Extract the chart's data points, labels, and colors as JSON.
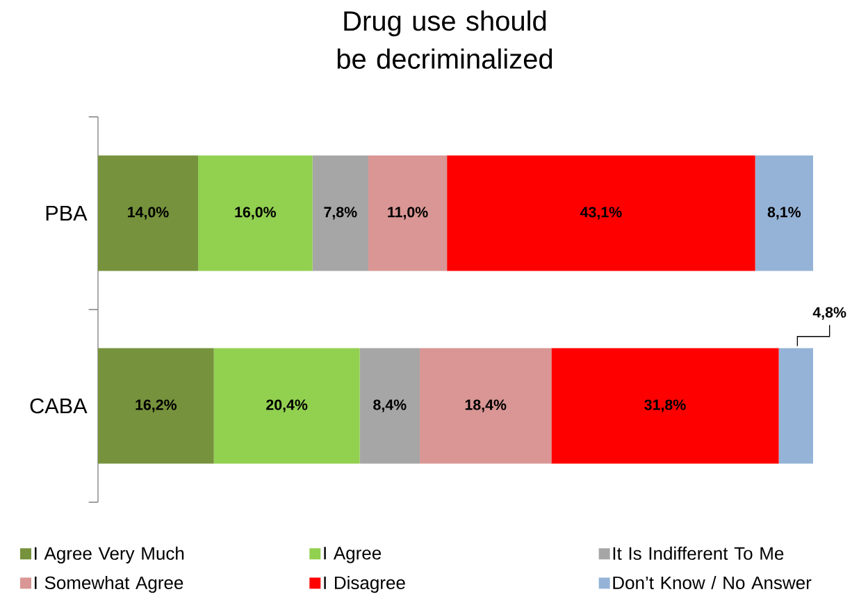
{
  "chart_data": {
    "type": "bar",
    "title": "Drug use should be decriminalized",
    "orientation": "horizontal",
    "stacked": true,
    "categories": [
      "PBA",
      "CABA"
    ],
    "tick_labels": "y",
    "legend": "bottom",
    "series": [
      {
        "name": "I Agree Very Much",
        "color": "#76923c",
        "values": [
          14.0,
          16.2
        ],
        "value_labels": [
          "14,0%",
          "16,2%"
        ]
      },
      {
        "name": "I Agree",
        "color": "#92d050",
        "values": [
          16.0,
          20.4
        ],
        "value_labels": [
          "16,0%",
          "20,4%"
        ]
      },
      {
        "name": "It Is Indifferent To Me",
        "color": "#a6a6a6",
        "values": [
          7.8,
          8.4
        ],
        "value_labels": [
          "7,8%",
          "8,4%"
        ]
      },
      {
        "name": "I Somewhat Agree",
        "color": "#d99694",
        "values": [
          11.0,
          18.4
        ],
        "value_labels": [
          "11,0%",
          "18,4%"
        ]
      },
      {
        "name": "I Disagree",
        "color": "#ff0000",
        "values": [
          43.1,
          31.8
        ],
        "value_labels": [
          "43,1%",
          "31,8%"
        ]
      },
      {
        "name": "Don’t Know / No Answer",
        "color": "#95b3d7",
        "values": [
          8.1,
          4.8
        ],
        "value_labels": [
          "8,1%",
          "4,8%"
        ]
      }
    ]
  }
}
